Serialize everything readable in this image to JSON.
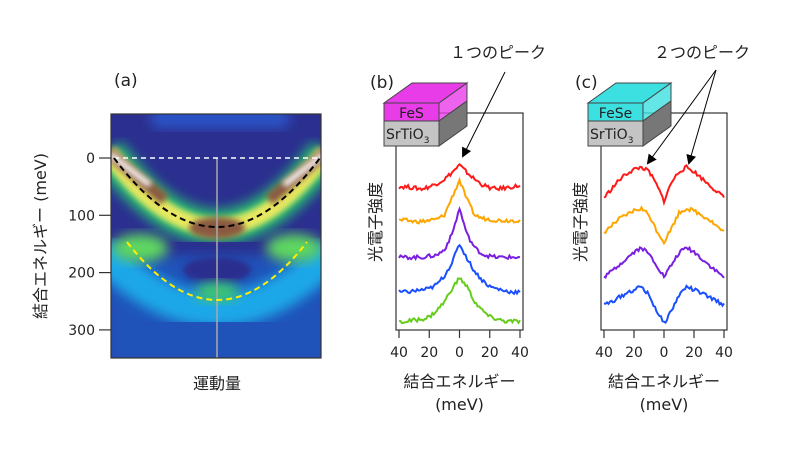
{
  "chart_data": [
    {
      "panel": "(a)",
      "type": "heatmap",
      "xlabel": "運動量",
      "ylabel": "結合エネルギー (meV)",
      "yticks": [
        0,
        100,
        200,
        300
      ],
      "ylim": [
        -77,
        350
      ],
      "y_inverted": true,
      "colormap": "dark blue → cyan → green → yellow → brown → white",
      "overlays": [
        {
          "style": "white dashed",
          "shape": "horizontal line",
          "y": 0
        },
        {
          "style": "gray solid",
          "shape": "vertical line",
          "x": "center"
        },
        {
          "style": "black dashed",
          "shape": "parabola",
          "vertex_y": 120,
          "edge_y": 0,
          "color": "#000000"
        },
        {
          "style": "yellow dashed",
          "shape": "parabola",
          "vertex_y": 250,
          "edge_y": 147,
          "color": "#ffee00"
        }
      ]
    },
    {
      "panel": "(b)",
      "type": "line",
      "xlabel": "結合エネルギー",
      "xunit": "(meV)",
      "ylabel": "光電子強度",
      "xtick_labels": [
        "40",
        "20",
        "0",
        "20",
        "40"
      ],
      "xticks": [
        -40,
        -20,
        0,
        20,
        40
      ],
      "xlim": [
        -40,
        40
      ],
      "ylim": [
        0,
        10
      ],
      "inset": {
        "top": "FeS",
        "bottom": "SrTiO",
        "sub": "3",
        "top_color": "#e83ce8"
      },
      "annotation": "１つのピーク",
      "x": [
        -40,
        -35,
        -30,
        -25,
        -20,
        -15,
        -10,
        -5,
        0,
        5,
        10,
        15,
        20,
        25,
        30,
        35,
        40
      ],
      "series": [
        {
          "color": "#ff1a1a",
          "values": [
            6.6,
            6.6,
            6.55,
            6.5,
            6.6,
            6.75,
            6.95,
            7.25,
            7.6,
            7.25,
            6.95,
            6.7,
            6.55,
            6.5,
            6.55,
            6.6,
            6.65
          ]
        },
        {
          "color": "#ffa500",
          "values": [
            5.05,
            5.05,
            5.0,
            5.0,
            5.05,
            5.1,
            5.3,
            6.1,
            6.9,
            6.0,
            5.3,
            5.15,
            5.1,
            5.05,
            5.05,
            5.05,
            5.05
          ]
        },
        {
          "color": "#7a1ee0",
          "values": [
            3.35,
            3.35,
            3.35,
            3.35,
            3.4,
            3.45,
            3.7,
            4.4,
            5.6,
            4.4,
            3.8,
            3.5,
            3.4,
            3.35,
            3.35,
            3.35,
            3.35
          ]
        },
        {
          "color": "#1a4fff",
          "values": [
            1.75,
            1.75,
            1.8,
            1.85,
            1.9,
            2.1,
            2.5,
            3.1,
            3.96,
            3.3,
            2.7,
            2.3,
            2.0,
            1.9,
            1.8,
            1.75,
            1.75
          ]
        },
        {
          "color": "#66cc1a",
          "values": [
            0.35,
            0.4,
            0.45,
            0.5,
            0.6,
            0.9,
            1.3,
            1.9,
            2.4,
            2.0,
            1.3,
            0.9,
            0.6,
            0.5,
            0.4,
            0.4,
            0.4
          ]
        }
      ]
    },
    {
      "panel": "(c)",
      "type": "line",
      "xlabel": "結合エネルギー",
      "xunit": "(meV)",
      "ylabel": "光電子強度",
      "xtick_labels": [
        "40",
        "20",
        "0",
        "20",
        "40"
      ],
      "xticks": [
        -40,
        -20,
        0,
        20,
        40
      ],
      "xlim": [
        -40,
        40
      ],
      "ylim": [
        0,
        10
      ],
      "inset": {
        "top": "FeSe",
        "bottom": "SrTiO",
        "sub": "3",
        "top_color": "#3de0e0"
      },
      "annotation": "２つのピーク",
      "x": [
        -40,
        -35,
        -30,
        -25,
        -20,
        -15,
        -10,
        -5,
        0,
        5,
        10,
        15,
        20,
        25,
        30,
        35,
        40
      ],
      "series": [
        {
          "color": "#ff1a1a",
          "values": [
            6.1,
            6.5,
            6.9,
            7.2,
            7.4,
            7.5,
            7.3,
            6.7,
            5.95,
            6.8,
            7.3,
            7.5,
            7.3,
            7.0,
            6.7,
            6.4,
            6.1
          ]
        },
        {
          "color": "#ffa500",
          "values": [
            4.5,
            4.8,
            5.1,
            5.3,
            5.5,
            5.6,
            5.3,
            4.6,
            4.05,
            4.7,
            5.4,
            5.6,
            5.5,
            5.3,
            5.1,
            4.8,
            4.5
          ]
        },
        {
          "color": "#7a1ee0",
          "values": [
            2.45,
            2.7,
            3.0,
            3.3,
            3.6,
            3.8,
            3.5,
            3.0,
            2.45,
            3.0,
            3.55,
            3.8,
            3.6,
            3.3,
            3.0,
            2.7,
            2.45
          ]
        },
        {
          "color": "#1a4fff",
          "values": [
            1.15,
            1.3,
            1.5,
            1.7,
            1.85,
            2.0,
            1.6,
            0.9,
            0.3,
            0.9,
            1.6,
            2.0,
            1.85,
            1.7,
            1.5,
            1.35,
            1.15
          ]
        }
      ]
    }
  ]
}
